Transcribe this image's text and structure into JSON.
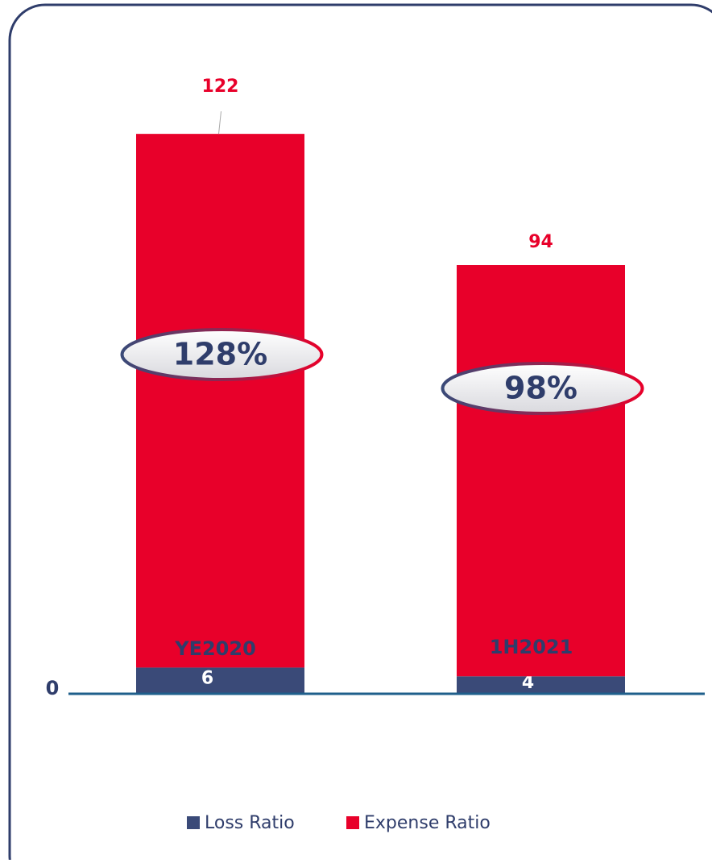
{
  "chart_data": {
    "type": "stacked_bar",
    "categories": [
      "YE2020",
      "1H2021"
    ],
    "series": [
      {
        "name": "Loss Ratio",
        "color": "#3a4a78",
        "values": [
          6,
          4
        ]
      },
      {
        "name": "Expense Ratio",
        "color": "#e8002a",
        "values": [
          122,
          94
        ]
      }
    ],
    "totals": [
      128,
      98
    ],
    "total_labels": [
      "128%",
      "98%"
    ],
    "ylim": [
      0,
      140
    ],
    "yticks": [
      0
    ],
    "legend": "bottom"
  }
}
